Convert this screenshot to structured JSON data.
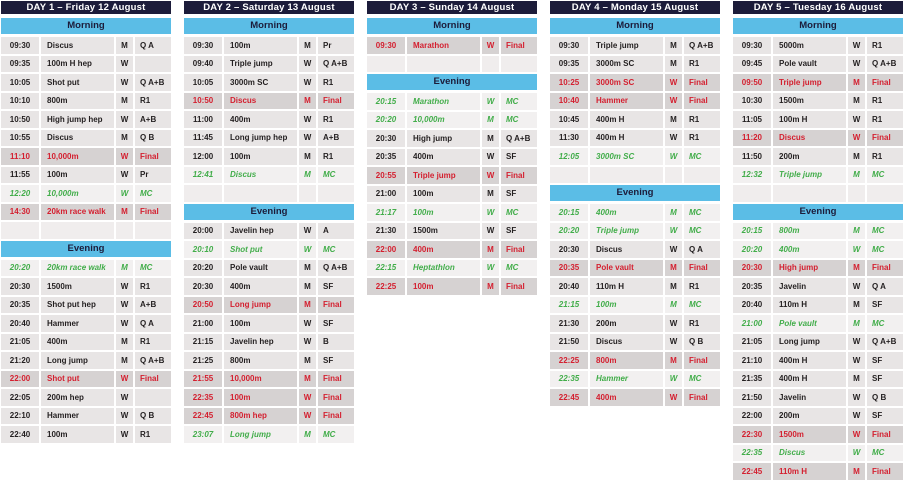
{
  "colors": {
    "day_header_bg": "#1c1c3a",
    "day_header_text": "#ffffff",
    "section_header_bg": "#5bbde6",
    "section_header_text": "#1c1c3a",
    "normal_row_bg": "#e8e5e5",
    "normal_text": "#231f20",
    "final_row_bg": "#d6d2d2",
    "final_text": "#d41f2f",
    "medal_ceremony_row_bg": "#f2f0f0",
    "medal_ceremony_text": "#42ad4a"
  },
  "days": [
    {
      "title": "DAY 1 – Friday 12 August",
      "sections": [
        {
          "label": "Morning",
          "rows": [
            {
              "time": "09:30",
              "event": "Discus",
              "gender": "M",
              "round": "Q A",
              "style": "normal"
            },
            {
              "time": "09:35",
              "event": "100m H hep",
              "gender": "W",
              "round": "",
              "style": "normal"
            },
            {
              "time": "10:05",
              "event": "Shot put",
              "gender": "W",
              "round": "Q A+B",
              "style": "normal"
            },
            {
              "time": "10:10",
              "event": "800m",
              "gender": "M",
              "round": "R1",
              "style": "normal"
            },
            {
              "time": "10:50",
              "event": "High jump hep",
              "gender": "W",
              "round": "A+B",
              "style": "normal"
            },
            {
              "time": "10:55",
              "event": "Discus",
              "gender": "M",
              "round": "Q B",
              "style": "normal"
            },
            {
              "time": "11:10",
              "event": "10,000m",
              "gender": "W",
              "round": "Final",
              "style": "final"
            },
            {
              "time": "11:55",
              "event": "100m",
              "gender": "W",
              "round": "Pr",
              "style": "normal"
            },
            {
              "time": "12:20",
              "event": "10,000m",
              "gender": "W",
              "round": "MC",
              "style": "mc"
            },
            {
              "time": "14:30",
              "event": "20km race walk",
              "gender": "M",
              "round": "Final",
              "style": "final"
            }
          ]
        },
        {
          "label": "Evening",
          "rows": [
            {
              "time": "20:20",
              "event": "20km race walk",
              "gender": "M",
              "round": "MC",
              "style": "mc"
            },
            {
              "time": "20:30",
              "event": "1500m",
              "gender": "W",
              "round": "R1",
              "style": "normal"
            },
            {
              "time": "20:35",
              "event": "Shot put hep",
              "gender": "W",
              "round": "A+B",
              "style": "normal"
            },
            {
              "time": "20:40",
              "event": "Hammer",
              "gender": "W",
              "round": "Q A",
              "style": "normal"
            },
            {
              "time": "21:05",
              "event": "400m",
              "gender": "M",
              "round": "R1",
              "style": "normal"
            },
            {
              "time": "21:20",
              "event": "Long jump",
              "gender": "M",
              "round": "Q A+B",
              "style": "normal"
            },
            {
              "time": "22:00",
              "event": "Shot put",
              "gender": "W",
              "round": "Final",
              "style": "final"
            },
            {
              "time": "22:05",
              "event": "200m hep",
              "gender": "W",
              "round": "",
              "style": "normal"
            },
            {
              "time": "22:10",
              "event": "Hammer",
              "gender": "W",
              "round": "Q B",
              "style": "normal"
            },
            {
              "time": "22:40",
              "event": "100m",
              "gender": "W",
              "round": "R1",
              "style": "normal"
            }
          ]
        }
      ]
    },
    {
      "title": "DAY 2 – Saturday 13 August",
      "sections": [
        {
          "label": "Morning",
          "rows": [
            {
              "time": "09:30",
              "event": "100m",
              "gender": "M",
              "round": "Pr",
              "style": "normal"
            },
            {
              "time": "09:40",
              "event": "Triple jump",
              "gender": "W",
              "round": "Q A+B",
              "style": "normal"
            },
            {
              "time": "10:05",
              "event": "3000m SC",
              "gender": "W",
              "round": "R1",
              "style": "normal"
            },
            {
              "time": "10:50",
              "event": "Discus",
              "gender": "M",
              "round": "Final",
              "style": "final"
            },
            {
              "time": "11:00",
              "event": "400m",
              "gender": "W",
              "round": "R1",
              "style": "normal"
            },
            {
              "time": "11:45",
              "event": "Long jump hep",
              "gender": "W",
              "round": "A+B",
              "style": "normal"
            },
            {
              "time": "12:00",
              "event": "100m",
              "gender": "M",
              "round": "R1",
              "style": "normal"
            },
            {
              "time": "12:41",
              "event": "Discus",
              "gender": "M",
              "round": "MC",
              "style": "mc"
            }
          ]
        },
        {
          "label": "Evening",
          "rows": [
            {
              "time": "20:00",
              "event": "Javelin hep",
              "gender": "W",
              "round": "A",
              "style": "normal"
            },
            {
              "time": "20:10",
              "event": "Shot put",
              "gender": "W",
              "round": "MC",
              "style": "mc"
            },
            {
              "time": "20:20",
              "event": "Pole vault",
              "gender": "M",
              "round": "Q A+B",
              "style": "normal"
            },
            {
              "time": "20:30",
              "event": "400m",
              "gender": "M",
              "round": "SF",
              "style": "normal"
            },
            {
              "time": "20:50",
              "event": "Long jump",
              "gender": "M",
              "round": "Final",
              "style": "final"
            },
            {
              "time": "21:00",
              "event": "100m",
              "gender": "W",
              "round": "SF",
              "style": "normal"
            },
            {
              "time": "21:15",
              "event": "Javelin hep",
              "gender": "W",
              "round": "B",
              "style": "normal"
            },
            {
              "time": "21:25",
              "event": "800m",
              "gender": "M",
              "round": "SF",
              "style": "normal"
            },
            {
              "time": "21:55",
              "event": "10,000m",
              "gender": "M",
              "round": "Final",
              "style": "final"
            },
            {
              "time": "22:35",
              "event": "100m",
              "gender": "W",
              "round": "Final",
              "style": "final"
            },
            {
              "time": "22:45",
              "event": "800m hep",
              "gender": "W",
              "round": "Final",
              "style": "final"
            },
            {
              "time": "23:07",
              "event": "Long jump",
              "gender": "M",
              "round": "MC",
              "style": "mc"
            }
          ]
        }
      ]
    },
    {
      "title": "DAY 3 – Sunday 14 August",
      "sections": [
        {
          "label": "Morning",
          "rows": [
            {
              "time": "09:30",
              "event": "Marathon",
              "gender": "W",
              "round": "Final",
              "style": "final"
            }
          ]
        },
        {
          "label": "Evening",
          "rows": [
            {
              "time": "20:15",
              "event": "Marathon",
              "gender": "W",
              "round": "MC",
              "style": "mc"
            },
            {
              "time": "20:20",
              "event": "10,000m",
              "gender": "M",
              "round": "MC",
              "style": "mc"
            },
            {
              "time": "20:30",
              "event": "High jump",
              "gender": "M",
              "round": "Q A+B",
              "style": "normal"
            },
            {
              "time": "20:35",
              "event": "400m",
              "gender": "W",
              "round": "SF",
              "style": "normal"
            },
            {
              "time": "20:55",
              "event": "Triple jump",
              "gender": "W",
              "round": "Final",
              "style": "final"
            },
            {
              "time": "21:00",
              "event": "100m",
              "gender": "M",
              "round": "SF",
              "style": "normal"
            },
            {
              "time": "21:17",
              "event": "100m",
              "gender": "W",
              "round": "MC",
              "style": "mc"
            },
            {
              "time": "21:30",
              "event": "1500m",
              "gender": "W",
              "round": "SF",
              "style": "normal"
            },
            {
              "time": "22:00",
              "event": "400m",
              "gender": "M",
              "round": "Final",
              "style": "final"
            },
            {
              "time": "22:15",
              "event": "Heptathlon",
              "gender": "W",
              "round": "MC",
              "style": "mc"
            },
            {
              "time": "22:25",
              "event": "100m",
              "gender": "M",
              "round": "Final",
              "style": "final"
            }
          ]
        }
      ]
    },
    {
      "title": "DAY 4 – Monday 15 August",
      "sections": [
        {
          "label": "Morning",
          "rows": [
            {
              "time": "09:30",
              "event": "Triple jump",
              "gender": "M",
              "round": "Q A+B",
              "style": "normal"
            },
            {
              "time": "09:35",
              "event": "3000m SC",
              "gender": "M",
              "round": "R1",
              "style": "normal"
            },
            {
              "time": "10:25",
              "event": "3000m SC",
              "gender": "W",
              "round": "Final",
              "style": "final"
            },
            {
              "time": "10:40",
              "event": "Hammer",
              "gender": "W",
              "round": "Final",
              "style": "final"
            },
            {
              "time": "10:45",
              "event": "400m H",
              "gender": "M",
              "round": "R1",
              "style": "normal"
            },
            {
              "time": "11:30",
              "event": "400m H",
              "gender": "W",
              "round": "R1",
              "style": "normal"
            },
            {
              "time": "12:05",
              "event": "3000m SC",
              "gender": "W",
              "round": "MC",
              "style": "mc"
            }
          ]
        },
        {
          "label": "Evening",
          "rows": [
            {
              "time": "20:15",
              "event": "400m",
              "gender": "M",
              "round": "MC",
              "style": "mc"
            },
            {
              "time": "20:20",
              "event": "Triple jump",
              "gender": "W",
              "round": "MC",
              "style": "mc"
            },
            {
              "time": "20:30",
              "event": "Discus",
              "gender": "W",
              "round": "Q A",
              "style": "normal"
            },
            {
              "time": "20:35",
              "event": "Pole vault",
              "gender": "M",
              "round": "Final",
              "style": "final"
            },
            {
              "time": "20:40",
              "event": "110m H",
              "gender": "M",
              "round": "R1",
              "style": "normal"
            },
            {
              "time": "21:15",
              "event": "100m",
              "gender": "M",
              "round": "MC",
              "style": "mc"
            },
            {
              "time": "21:30",
              "event": "200m",
              "gender": "W",
              "round": "R1",
              "style": "normal"
            },
            {
              "time": "21:50",
              "event": "Discus",
              "gender": "W",
              "round": "Q B",
              "style": "normal"
            },
            {
              "time": "22:25",
              "event": "800m",
              "gender": "M",
              "round": "Final",
              "style": "final"
            },
            {
              "time": "22:35",
              "event": "Hammer",
              "gender": "W",
              "round": "MC",
              "style": "mc"
            },
            {
              "time": "22:45",
              "event": "400m",
              "gender": "W",
              "round": "Final",
              "style": "final"
            }
          ]
        }
      ]
    },
    {
      "title": "DAY 5 – Tuesday 16 August",
      "sections": [
        {
          "label": "Morning",
          "rows": [
            {
              "time": "09:30",
              "event": "5000m",
              "gender": "W",
              "round": "R1",
              "style": "normal"
            },
            {
              "time": "09:45",
              "event": "Pole vault",
              "gender": "W",
              "round": "Q A+B",
              "style": "normal"
            },
            {
              "time": "09:50",
              "event": "Triple jump",
              "gender": "M",
              "round": "Final",
              "style": "final"
            },
            {
              "time": "10:30",
              "event": "1500m",
              "gender": "M",
              "round": "R1",
              "style": "normal"
            },
            {
              "time": "11:05",
              "event": "100m H",
              "gender": "W",
              "round": "R1",
              "style": "normal"
            },
            {
              "time": "11:20",
              "event": "Discus",
              "gender": "W",
              "round": "Final",
              "style": "final"
            },
            {
              "time": "11:50",
              "event": "200m",
              "gender": "M",
              "round": "R1",
              "style": "normal"
            },
            {
              "time": "12:32",
              "event": "Triple jump",
              "gender": "M",
              "round": "MC",
              "style": "mc"
            }
          ]
        },
        {
          "label": "Evening",
          "rows": [
            {
              "time": "20:15",
              "event": "800m",
              "gender": "M",
              "round": "MC",
              "style": "mc"
            },
            {
              "time": "20:20",
              "event": "400m",
              "gender": "W",
              "round": "MC",
              "style": "mc"
            },
            {
              "time": "20:30",
              "event": "High jump",
              "gender": "M",
              "round": "Final",
              "style": "final"
            },
            {
              "time": "20:35",
              "event": "Javelin",
              "gender": "W",
              "round": "Q A",
              "style": "normal"
            },
            {
              "time": "20:40",
              "event": "110m H",
              "gender": "M",
              "round": "SF",
              "style": "normal"
            },
            {
              "time": "21:00",
              "event": "Pole vault",
              "gender": "M",
              "round": "MC",
              "style": "mc"
            },
            {
              "time": "21:05",
              "event": "Long jump",
              "gender": "W",
              "round": "Q A+B",
              "style": "normal"
            },
            {
              "time": "21:10",
              "event": "400m H",
              "gender": "W",
              "round": "SF",
              "style": "normal"
            },
            {
              "time": "21:35",
              "event": "400m H",
              "gender": "M",
              "round": "SF",
              "style": "normal"
            },
            {
              "time": "21:50",
              "event": "Javelin",
              "gender": "W",
              "round": "Q B",
              "style": "normal"
            },
            {
              "time": "22:00",
              "event": "200m",
              "gender": "W",
              "round": "SF",
              "style": "normal"
            },
            {
              "time": "22:30",
              "event": "1500m",
              "gender": "W",
              "round": "Final",
              "style": "final"
            },
            {
              "time": "22:35",
              "event": "Discus",
              "gender": "W",
              "round": "MC",
              "style": "mc"
            },
            {
              "time": "22:45",
              "event": "110m H",
              "gender": "M",
              "round": "Final",
              "style": "final"
            }
          ]
        }
      ]
    }
  ]
}
